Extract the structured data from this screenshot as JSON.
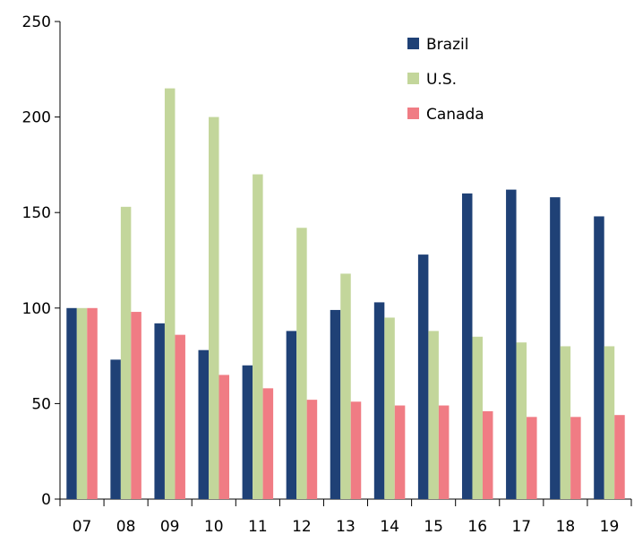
{
  "chart_data": {
    "type": "bar",
    "categories": [
      "07",
      "08",
      "09",
      "10",
      "11",
      "12",
      "13",
      "14",
      "15",
      "16",
      "17",
      "18",
      "19"
    ],
    "series": [
      {
        "name": "Brazil",
        "color": "#1f4176",
        "values": [
          100,
          73,
          92,
          78,
          70,
          88,
          99,
          103,
          128,
          160,
          162,
          158,
          148
        ]
      },
      {
        "name": "U.S.",
        "color": "#c3d69b",
        "values": [
          100,
          153,
          215,
          200,
          170,
          142,
          118,
          95,
          88,
          85,
          82,
          80,
          80
        ]
      },
      {
        "name": "Canada",
        "color": "#f07c84",
        "values": [
          100,
          98,
          86,
          65,
          58,
          52,
          51,
          49,
          49,
          46,
          43,
          43,
          44
        ]
      }
    ],
    "ylim": [
      0,
      250
    ],
    "yticks": [
      0,
      50,
      100,
      150,
      200,
      250
    ],
    "legend_position": "top-right",
    "grid": false
  }
}
